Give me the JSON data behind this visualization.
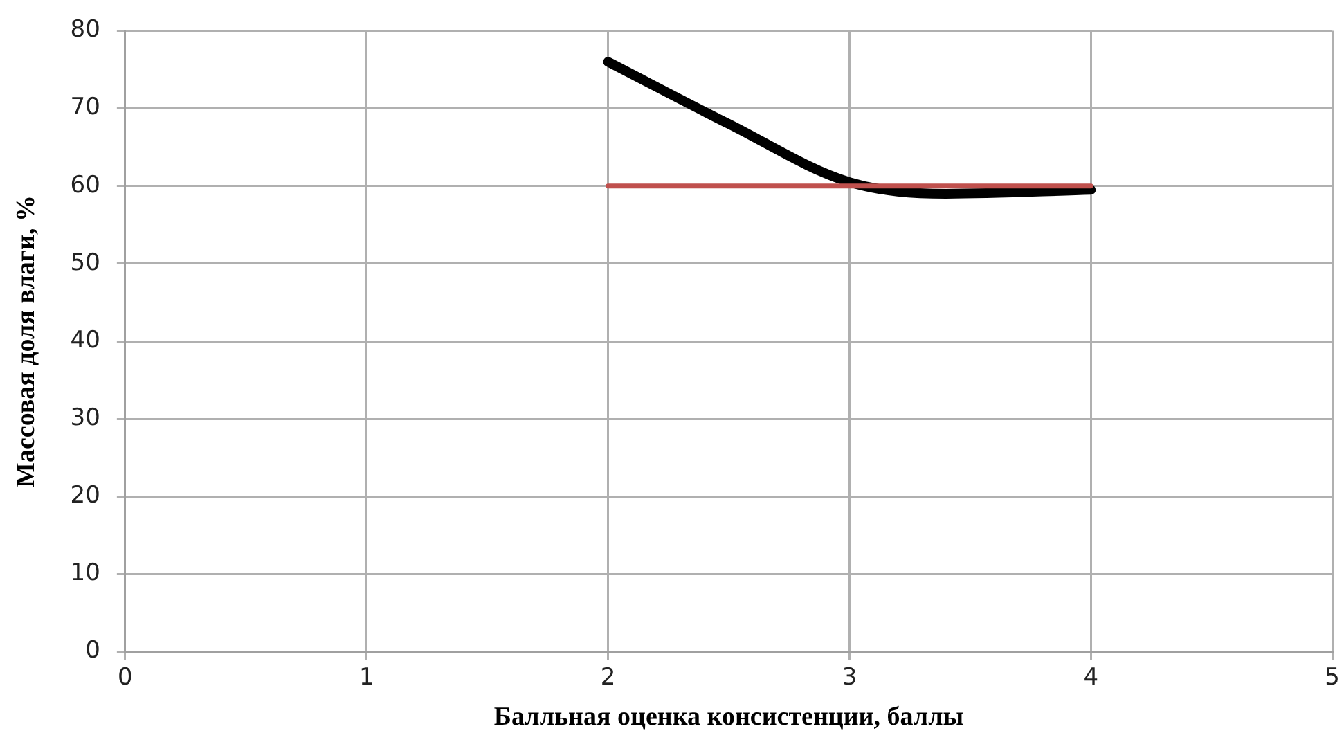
{
  "chart_data": {
    "type": "line",
    "xlabel": "Балльная оценка консистенции, баллы",
    "ylabel": "Массовая доля влаги, %",
    "series": [
      {
        "color": "#000000",
        "x": [
          2,
          2.5,
          3,
          3.4,
          4
        ],
        "values": [
          76,
          68,
          60.5,
          59,
          59.5
        ]
      },
      {
        "color": "#c0504d",
        "x": [
          2,
          4
        ],
        "values": [
          60,
          60
        ]
      }
    ],
    "xlim": [
      0,
      5
    ],
    "xticks": [
      0,
      1,
      2,
      3,
      4,
      5
    ],
    "ylim": [
      0,
      80
    ],
    "yticks": [
      0,
      10,
      20,
      30,
      40,
      50,
      60,
      70,
      80
    ],
    "grid": true,
    "legend": false,
    "marker": "none",
    "line_style": "solid"
  }
}
